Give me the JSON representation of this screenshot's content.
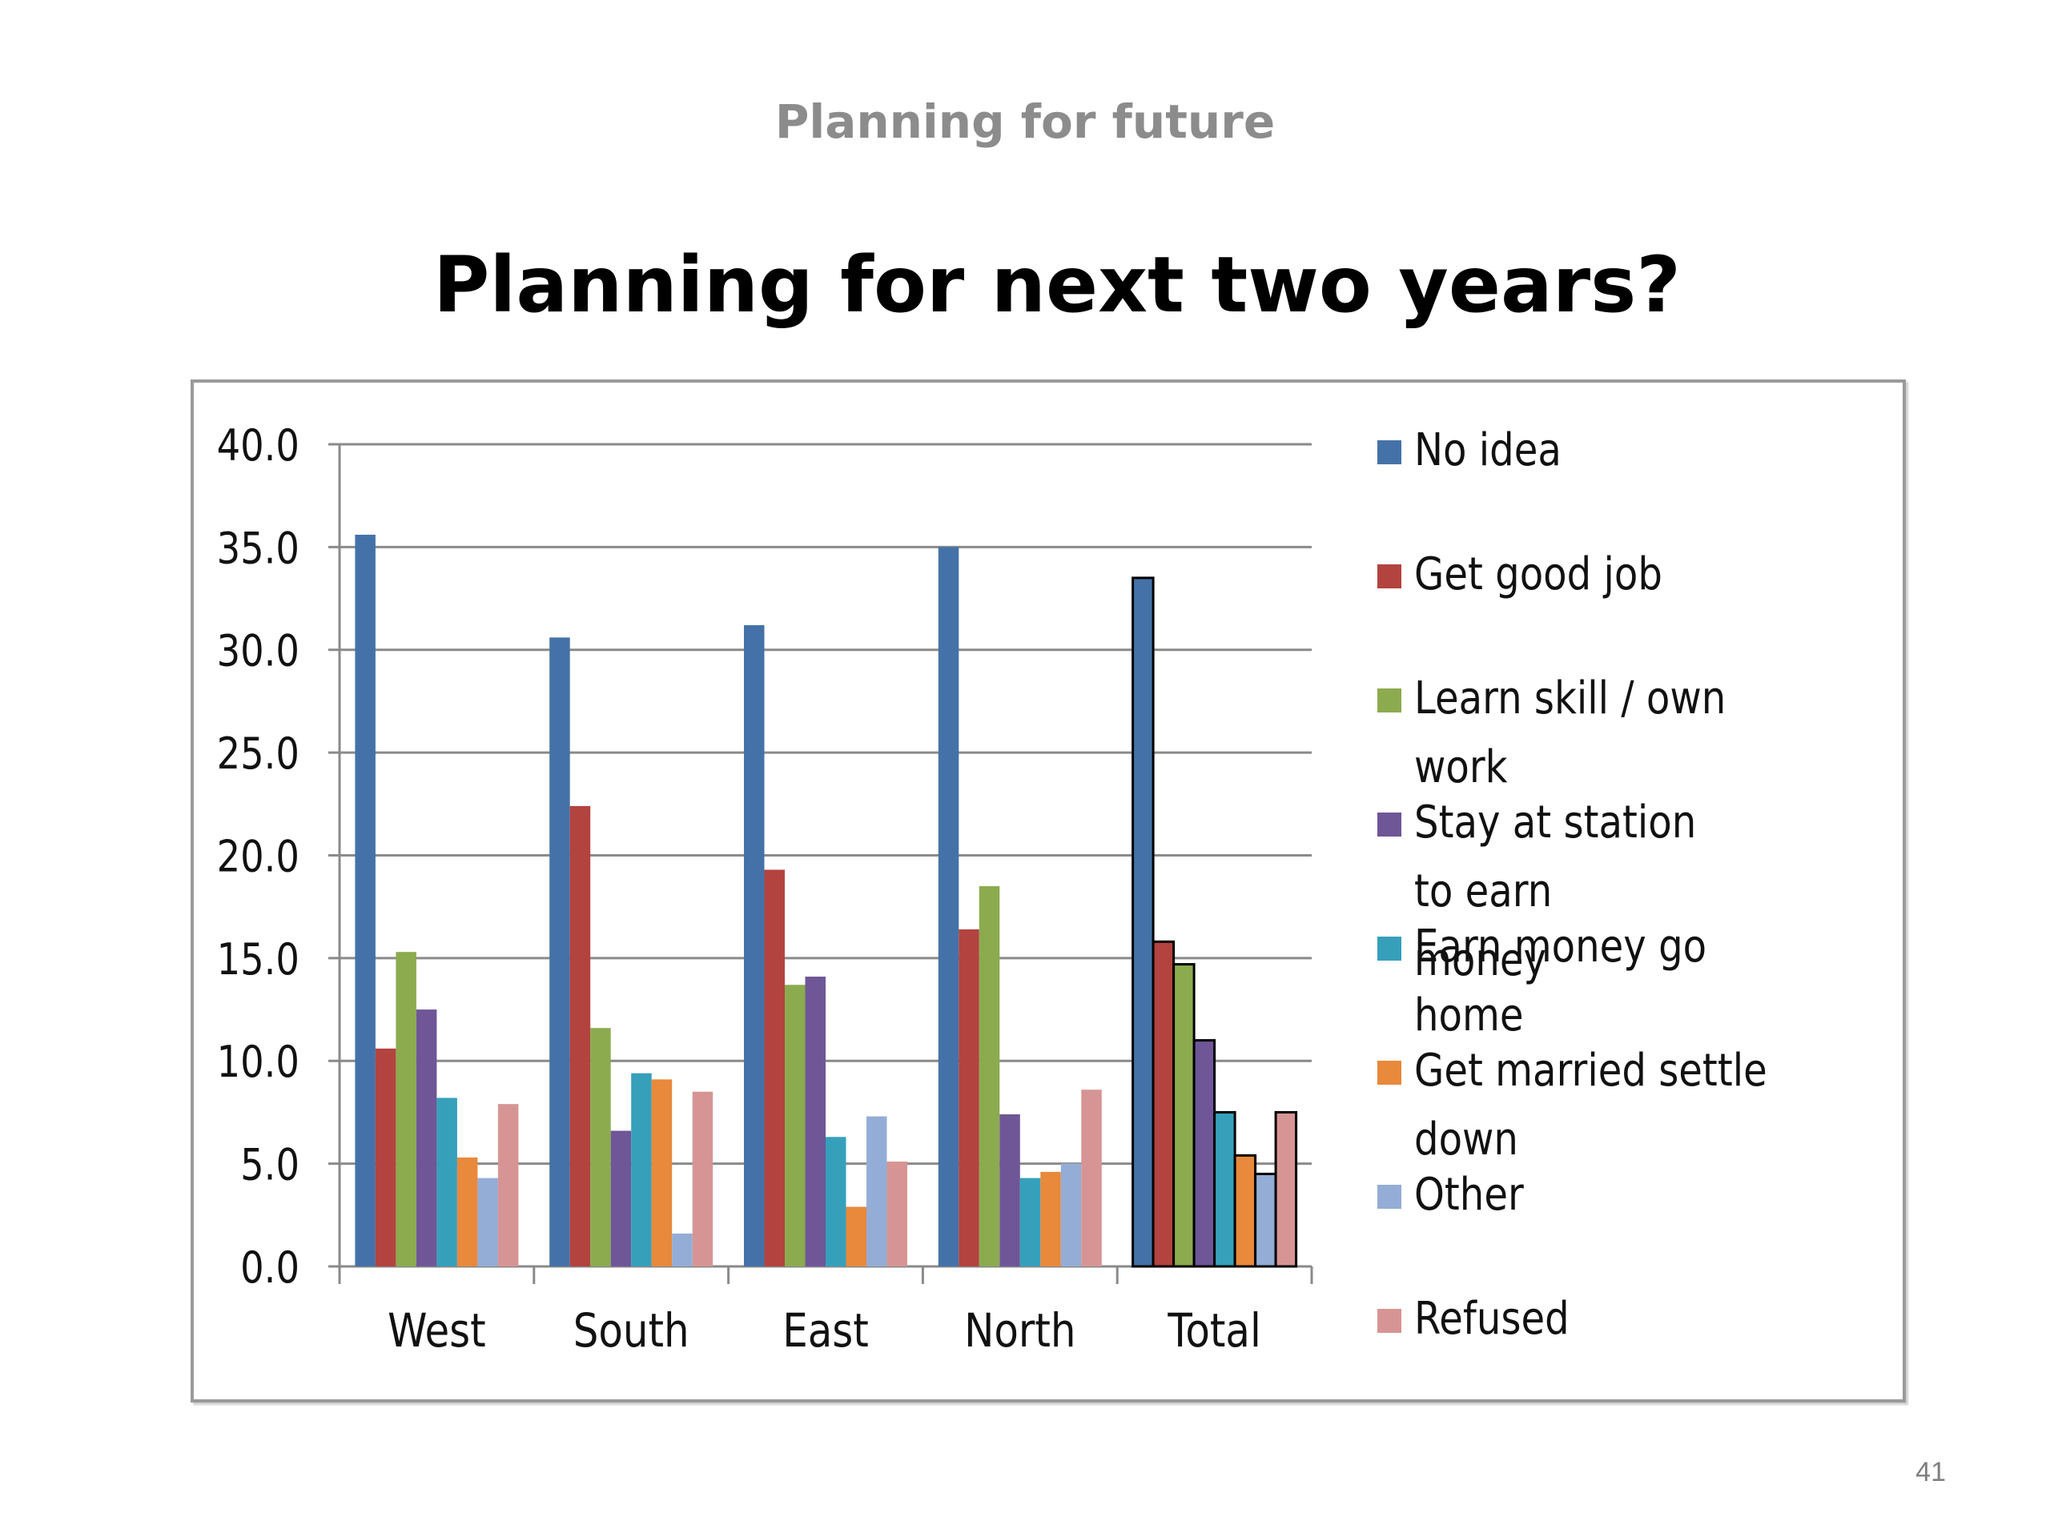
{
  "slide": {
    "header": "Planning for future",
    "page_number": "41"
  },
  "chart_data": {
    "type": "bar",
    "title": "Planning for next two years?",
    "xlabel": "",
    "ylabel": "",
    "categories": [
      "West",
      "South",
      "East",
      "North",
      "Total"
    ],
    "ylim": [
      0,
      40
    ],
    "yticks": [
      "0.0",
      "5.0",
      "10.0",
      "15.0",
      "20.0",
      "25.0",
      "30.0",
      "35.0",
      "40.0"
    ],
    "grid": true,
    "legend_position": "right",
    "series": [
      {
        "name": "No idea",
        "color": "#4472a8",
        "values": [
          35.6,
          30.6,
          31.2,
          35.0,
          33.5
        ]
      },
      {
        "name": "Get good job",
        "color": "#b3433f",
        "values": [
          10.6,
          22.4,
          19.3,
          16.4,
          15.8
        ]
      },
      {
        "name": "Learn skill / own work",
        "color": "#8cab4f",
        "values": [
          15.3,
          11.6,
          13.7,
          18.5,
          14.7
        ]
      },
      {
        "name": "Stay at station to earn money",
        "color": "#6f5697",
        "values": [
          12.5,
          6.6,
          14.1,
          7.4,
          11.0
        ]
      },
      {
        "name": "Earn money go home",
        "color": "#36a0bb",
        "values": [
          8.2,
          9.4,
          6.3,
          4.3,
          7.5
        ]
      },
      {
        "name": "Get married settle down",
        "color": "#e8893c",
        "values": [
          5.3,
          9.1,
          2.9,
          4.6,
          5.4
        ]
      },
      {
        "name": "Other",
        "color": "#94add6",
        "values": [
          4.3,
          1.6,
          7.3,
          5.0,
          4.5
        ]
      },
      {
        "name": "Refused",
        "color": "#d69594",
        "values": [
          7.9,
          8.5,
          5.1,
          8.6,
          7.5
        ]
      }
    ],
    "outlined_category": "Total"
  }
}
